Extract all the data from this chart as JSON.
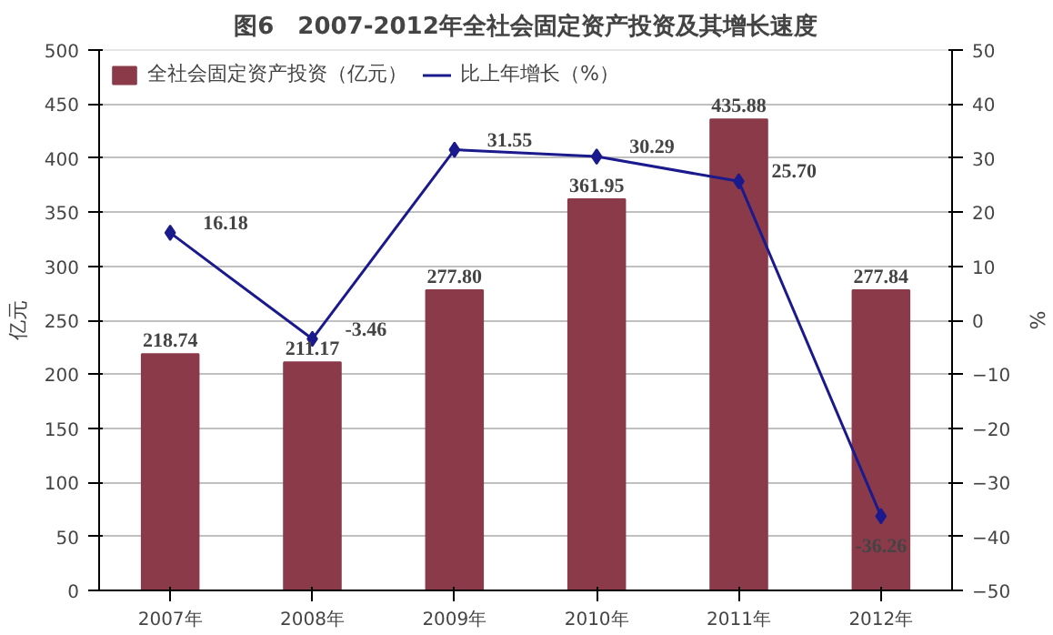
{
  "chart_data": {
    "type": "bar",
    "title": "图6　2007-2012年全社会固定资产投资及其增长速度",
    "ylabel": "亿元",
    "y2label": "%",
    "categories": [
      "2007年",
      "2008年",
      "2009年",
      "2010年",
      "2011年",
      "2012年"
    ],
    "series": [
      {
        "name": "全社会固定资产投资（亿元）",
        "color": "#8b3a4a",
        "values": [
          218.74,
          211.17,
          277.8,
          361.95,
          435.88,
          277.84
        ],
        "value_labels": [
          "218.74",
          "211.17",
          "277.80",
          "361.95",
          "435.88",
          "277.84"
        ]
      },
      {
        "name": "比上年增长（%）",
        "type": "line",
        "axis": "y2",
        "color": "#1a1a8c",
        "marker": "diamond",
        "values": [
          16.18,
          -3.46,
          31.55,
          30.29,
          25.7,
          -36.26
        ],
        "value_labels": [
          "16.18",
          "-3.46",
          "31.55",
          "30.29",
          "25.70",
          "-36.26"
        ]
      }
    ],
    "ylim": [
      0,
      500
    ],
    "yticks": [
      0,
      50,
      100,
      150,
      200,
      250,
      300,
      350,
      400,
      450,
      500
    ],
    "y2lim": [
      -50,
      50
    ],
    "y2ticks": [
      -50,
      -40,
      -30,
      -20,
      -10,
      0,
      10,
      20,
      30,
      40,
      50
    ],
    "grid": "y",
    "legend": "top left"
  }
}
